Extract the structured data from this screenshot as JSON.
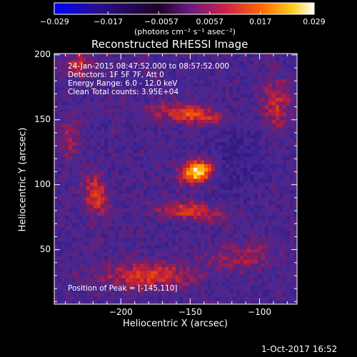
{
  "colorbar": {
    "ticks": [
      "−0.029",
      "−0.017",
      "−0.0057",
      "0.0057",
      "0.017",
      "0.029"
    ],
    "tick_values": [
      -0.029,
      -0.017,
      -0.0057,
      0.0057,
      0.017,
      0.029
    ],
    "units_label": "(photons cm⁻² s⁻¹ asec⁻²)",
    "colors": [
      "#0000ff",
      "#2a0030",
      "#5a1a8c",
      "#c0145a",
      "#ff5a00",
      "#ffc000",
      "#ffffff"
    ]
  },
  "chart_data": {
    "type": "heatmap",
    "title": "Reconstructed RHESSI Image",
    "xlabel": "Heliocentric X (arcsec)",
    "ylabel": "Heliocentric Y (arcsec)",
    "xlim": [
      -248,
      -73
    ],
    "ylim": [
      8,
      201
    ],
    "x_ticks": [
      -200,
      -150,
      -100
    ],
    "x_tick_labels": [
      "−200",
      "−150",
      "−100"
    ],
    "y_ticks": [
      50,
      100,
      150,
      200
    ],
    "y_tick_labels": [
      "50",
      "100",
      "150",
      "200"
    ],
    "value_range": [
      -0.029,
      0.029
    ],
    "peak_position": [
      -145,
      110
    ],
    "features": [
      {
        "name": "core",
        "x": -145,
        "y": 110,
        "value": 0.029
      },
      {
        "name": "upper-arc",
        "x": -150,
        "y": 153,
        "value": 0.018
      },
      {
        "name": "lower-arc",
        "x": -150,
        "y": 80,
        "value": 0.016
      },
      {
        "name": "left-lobe",
        "x": -218,
        "y": 92,
        "value": 0.015
      },
      {
        "name": "bottom-band",
        "x": -185,
        "y": 32,
        "value": 0.014
      }
    ]
  },
  "annotations": {
    "lines": [
      "24-Jan-2015 08:47:52.000 to 08:57:52.000",
      "Detectors: 1F 5F 7F, Att 0",
      "Energy Range: 6.0 - 12.0 keV",
      "Clean     Total counts: 3.95E+04"
    ],
    "peak_label": "Position of Peak = [-145,110]"
  },
  "footer": {
    "timestamp": "1-Oct-2017 16:52"
  }
}
